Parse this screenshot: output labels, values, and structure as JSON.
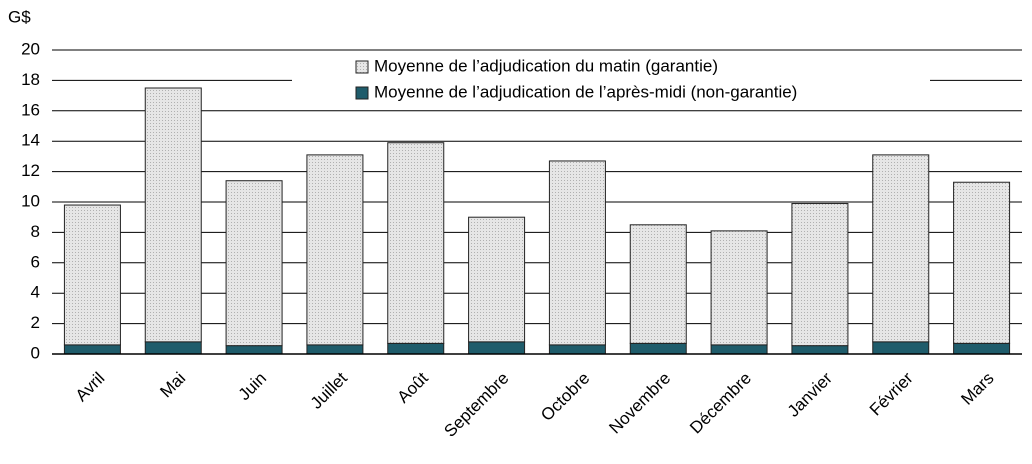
{
  "chart_data": {
    "type": "stacked-bar",
    "y_label": "G$",
    "categories": [
      "Avril",
      "Mai",
      "Juin",
      "Juillet",
      "Août",
      "Septembre",
      "Octobre",
      "Novembre",
      "Décembre",
      "Janvier",
      "Février",
      "Mars"
    ],
    "series": [
      {
        "name": "Moyenne de l’adjudication du matin (garantie)",
        "color": "#d9d9d9",
        "values": [
          9.2,
          16.7,
          10.85,
          12.5,
          13.2,
          8.2,
          12.1,
          7.8,
          7.5,
          9.35,
          12.3,
          10.6
        ]
      },
      {
        "name": "Moyenne de l’adjudication de l’après-midi (non-garantie)",
        "color": "#1f5c6b",
        "values": [
          0.6,
          0.8,
          0.55,
          0.6,
          0.7,
          0.8,
          0.6,
          0.7,
          0.6,
          0.55,
          0.8,
          0.7
        ]
      }
    ],
    "ylim": [
      0,
      20
    ],
    "yticks": [
      0,
      2,
      4,
      6,
      8,
      10,
      12,
      14,
      16,
      18,
      20
    ],
    "grid": true,
    "legend": "top"
  }
}
